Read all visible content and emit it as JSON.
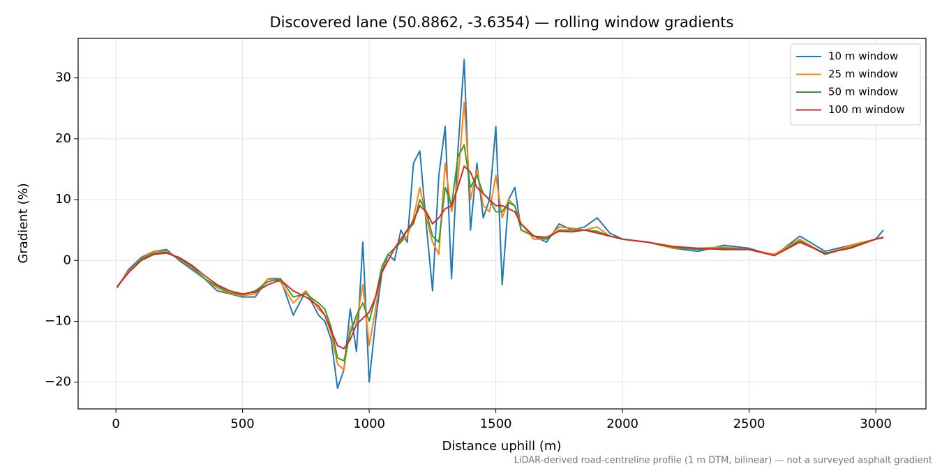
{
  "chart_data": {
    "type": "line",
    "title": "Discovered lane (50.8862, -3.6354) — rolling window gradients",
    "x_label": "Distance uphill (m)",
    "y_label": "Gradient (%)",
    "footnote": "LiDAR-derived road-centreline profile (1 m DTM, bilinear) — not a surveyed asphalt gradient",
    "x": [
      5,
      50,
      100,
      150,
      200,
      250,
      300,
      350,
      400,
      450,
      500,
      550,
      600,
      650,
      700,
      750,
      800,
      825,
      850,
      875,
      900,
      925,
      950,
      975,
      1000,
      1025,
      1050,
      1075,
      1100,
      1125,
      1150,
      1175,
      1200,
      1225,
      1250,
      1275,
      1300,
      1325,
      1350,
      1375,
      1400,
      1425,
      1450,
      1475,
      1500,
      1525,
      1550,
      1575,
      1600,
      1650,
      1700,
      1750,
      1800,
      1850,
      1900,
      1950,
      2000,
      2100,
      2200,
      2300,
      2400,
      2500,
      2600,
      2700,
      2800,
      2900,
      3000,
      3030
    ],
    "series": [
      {
        "name": "10 m window",
        "color": "#1f77b4",
        "values": [
          -4.5,
          -1.5,
          0.5,
          1.5,
          1.8,
          0,
          -1.5,
          -3,
          -5,
          -5.5,
          -6,
          -6,
          -3,
          -3,
          -9,
          -5,
          -9,
          -10,
          -13,
          -21,
          -18,
          -8,
          -15,
          3,
          -20,
          -10,
          -2,
          1,
          0,
          5,
          3,
          16,
          18,
          6,
          -5,
          14,
          22,
          -3,
          18,
          33,
          5,
          16,
          7,
          10,
          22,
          -4,
          10,
          12,
          5,
          4,
          3,
          6,
          5,
          5.5,
          7,
          4.5,
          3.5,
          3,
          2,
          1.5,
          2.5,
          2,
          0.8,
          4,
          1.5,
          2.5,
          3.5,
          5
        ]
      },
      {
        "name": "25 m window",
        "color": "#ff7f0e",
        "values": [
          -4.3,
          -1.8,
          0.3,
          1.5,
          1.5,
          0.2,
          -1.2,
          -3,
          -4.5,
          -5.5,
          -5.8,
          -5.5,
          -3,
          -3.5,
          -7,
          -5,
          -8,
          -9,
          -12,
          -17,
          -18,
          -11,
          -10,
          -4,
          -14,
          -8,
          -1,
          0,
          2,
          3,
          4,
          7,
          12,
          7,
          3,
          1,
          16,
          8,
          13,
          26,
          10,
          15,
          9,
          8,
          14,
          7,
          10,
          9,
          6,
          3.5,
          3.5,
          5.5,
          5.3,
          5,
          5.5,
          4,
          3.5,
          3,
          2,
          2,
          2.2,
          1.8,
          1,
          3.5,
          1,
          2.5,
          3.5,
          3.7
        ]
      },
      {
        "name": "50 m window",
        "color": "#2ca02c",
        "values": [
          -4.3,
          -2,
          0.2,
          1.2,
          1.3,
          0.3,
          -1,
          -3,
          -4.2,
          -5.3,
          -5.6,
          -5,
          -3.5,
          -3,
          -6,
          -5.5,
          -7,
          -8,
          -11,
          -16,
          -16.5,
          -12,
          -9,
          -7,
          -10,
          -6,
          -1,
          1,
          2,
          3,
          5,
          6,
          10,
          8,
          4,
          3,
          12,
          9,
          17,
          19,
          12,
          14,
          11,
          10,
          8,
          8,
          9.5,
          9,
          5,
          4,
          3.5,
          5,
          5,
          5,
          4.8,
          4,
          3.5,
          3,
          2.2,
          1.8,
          2,
          1.8,
          0.8,
          3.2,
          1,
          2.2,
          3.5,
          3.8
        ]
      },
      {
        "name": "100 m window",
        "color": "#d62728",
        "values": [
          -4.3,
          -2,
          0,
          1,
          1.2,
          0.5,
          -0.8,
          -2.5,
          -4,
          -5,
          -5.5,
          -5.2,
          -4,
          -3.2,
          -5,
          -6,
          -7.5,
          -9,
          -11.5,
          -14,
          -14.5,
          -13,
          -10.5,
          -9.5,
          -8.5,
          -6,
          -2,
          0,
          2,
          3.5,
          5,
          6.5,
          9,
          8,
          6,
          7,
          8.5,
          9,
          12,
          15.5,
          14.5,
          12,
          11,
          10,
          9,
          9,
          8.5,
          8,
          6,
          4,
          3.8,
          4.8,
          4.7,
          5,
          4.5,
          4,
          3.5,
          3,
          2.3,
          2,
          1.8,
          1.8,
          0.8,
          3,
          1.2,
          2,
          3.5,
          3.8
        ]
      }
    ],
    "xlim": [
      -149,
      3198
    ],
    "ylim": [
      -24.4,
      36.5
    ],
    "xticks": [
      0,
      500,
      1000,
      1500,
      2000,
      2500,
      3000
    ],
    "yticks": [
      {
        "value": -20,
        "label": "−20"
      },
      {
        "value": -10,
        "label": "−10"
      },
      0,
      10,
      20,
      30
    ],
    "grid": true,
    "legend": "upper right"
  }
}
